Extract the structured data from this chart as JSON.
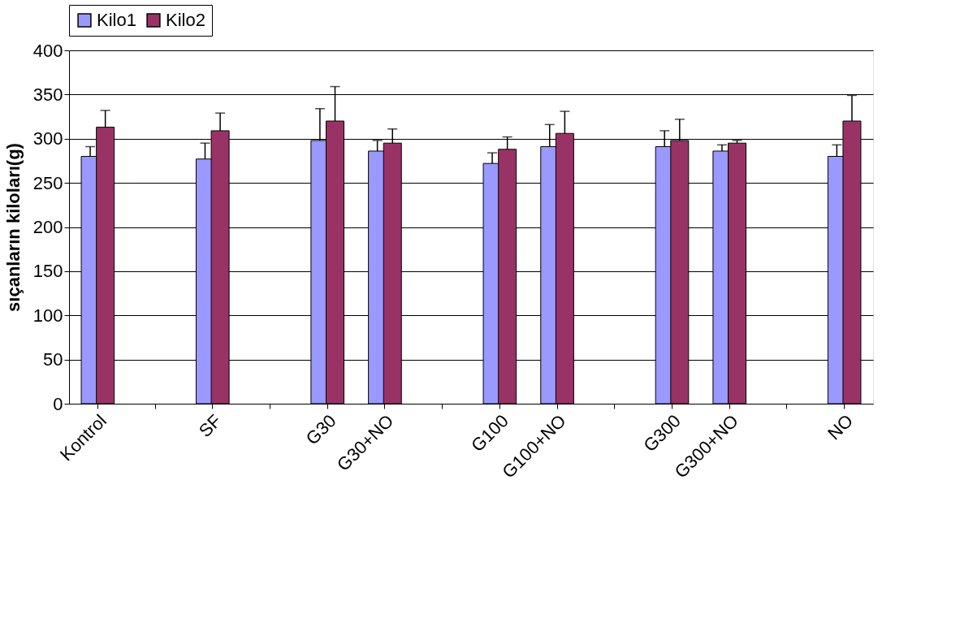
{
  "chart_data": {
    "type": "bar",
    "ylabel": "sıçanların kiloları(g)",
    "categories": [
      "Kontrol",
      null,
      "SF",
      null,
      "G30",
      "G30+NO",
      null,
      "G100",
      "G100+NO",
      null,
      "G300",
      "G300+NO",
      null,
      "NO"
    ],
    "series": [
      {
        "name": "Kilo1",
        "color": "#9999ff",
        "values": [
          280,
          null,
          277,
          null,
          298,
          286,
          null,
          272,
          291,
          null,
          291,
          286,
          null,
          280
        ],
        "errors": [
          [
            280,
            291
          ],
          null,
          [
            277,
            295
          ],
          null,
          [
            298,
            334
          ],
          [
            286,
            298
          ],
          null,
          [
            272,
            284
          ],
          [
            291,
            316
          ],
          null,
          [
            291,
            309
          ],
          [
            286,
            293
          ],
          null,
          [
            280,
            293
          ]
        ]
      },
      {
        "name": "Kilo2",
        "color": "#993366",
        "values": [
          313,
          null,
          309,
          null,
          320,
          295,
          null,
          288,
          306,
          null,
          298,
          295,
          null,
          320
        ],
        "errors": [
          [
            313,
            332
          ],
          null,
          [
            309,
            329
          ],
          null,
          [
            320,
            359
          ],
          [
            295,
            311
          ],
          null,
          [
            288,
            302
          ],
          [
            306,
            331
          ],
          null,
          [
            298,
            322
          ],
          [
            295,
            298
          ],
          null,
          [
            320,
            349
          ]
        ]
      }
    ],
    "ylim": [
      0,
      400
    ],
    "yticks": [
      0,
      50,
      100,
      150,
      200,
      250,
      300,
      350,
      400
    ],
    "grid": "y",
    "legend": "top"
  }
}
